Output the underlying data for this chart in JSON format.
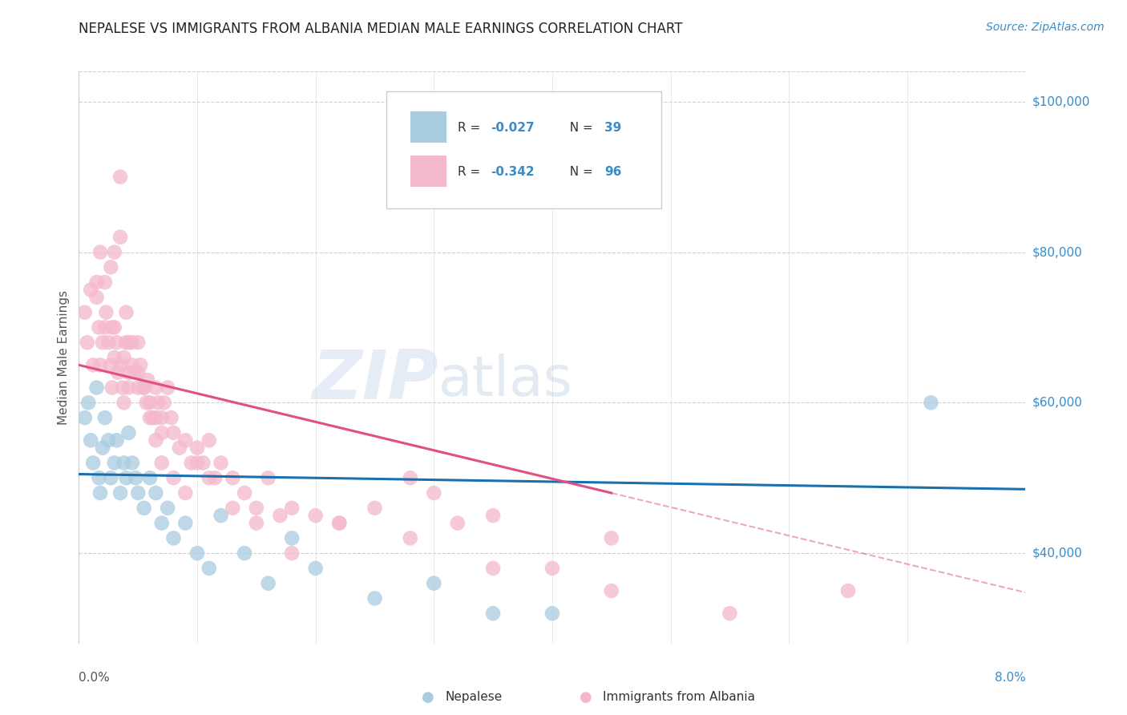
{
  "title": "NEPALESE VS IMMIGRANTS FROM ALBANIA MEDIAN MALE EARNINGS CORRELATION CHART",
  "source": "Source: ZipAtlas.com",
  "ylabel": "Median Male Earnings",
  "yticks": [
    40000,
    60000,
    80000,
    100000
  ],
  "ytick_labels": [
    "$40,000",
    "$60,000",
    "$80,000",
    "$100,000"
  ],
  "xlim": [
    0.0,
    8.0
  ],
  "ylim": [
    28000,
    104000
  ],
  "color_blue": "#a8cce0",
  "color_pink": "#f4b8cb",
  "color_blue_line": "#1a6faf",
  "color_pink_line": "#e05080",
  "color_blue_text": "#3a8cc8",
  "nepalese_x": [
    0.05,
    0.08,
    0.1,
    0.12,
    0.15,
    0.17,
    0.18,
    0.2,
    0.22,
    0.25,
    0.27,
    0.3,
    0.32,
    0.35,
    0.38,
    0.4,
    0.42,
    0.45,
    0.48,
    0.5,
    0.55,
    0.6,
    0.65,
    0.7,
    0.75,
    0.8,
    0.9,
    1.0,
    1.1,
    1.2,
    1.4,
    1.6,
    1.8,
    2.0,
    2.5,
    3.0,
    3.5,
    4.0,
    7.2
  ],
  "nepalese_y": [
    58000,
    60000,
    55000,
    52000,
    62000,
    50000,
    48000,
    54000,
    58000,
    55000,
    50000,
    52000,
    55000,
    48000,
    52000,
    50000,
    56000,
    52000,
    50000,
    48000,
    46000,
    50000,
    48000,
    44000,
    46000,
    42000,
    44000,
    40000,
    38000,
    45000,
    40000,
    36000,
    42000,
    38000,
    34000,
    36000,
    32000,
    32000,
    60000
  ],
  "albania_x": [
    0.05,
    0.07,
    0.1,
    0.12,
    0.15,
    0.15,
    0.17,
    0.18,
    0.2,
    0.22,
    0.23,
    0.25,
    0.27,
    0.28,
    0.3,
    0.3,
    0.32,
    0.33,
    0.35,
    0.37,
    0.38,
    0.38,
    0.4,
    0.42,
    0.42,
    0.45,
    0.45,
    0.47,
    0.5,
    0.5,
    0.52,
    0.55,
    0.57,
    0.58,
    0.6,
    0.62,
    0.65,
    0.65,
    0.67,
    0.7,
    0.7,
    0.72,
    0.75,
    0.78,
    0.8,
    0.85,
    0.9,
    0.95,
    1.0,
    1.05,
    1.1,
    1.15,
    1.2,
    1.3,
    1.4,
    1.5,
    1.6,
    1.7,
    1.8,
    2.0,
    2.2,
    2.5,
    2.8,
    3.0,
    3.2,
    3.5,
    4.0,
    4.5,
    0.27,
    0.3,
    0.35,
    0.35,
    0.4,
    0.42,
    0.5,
    0.55,
    0.6,
    0.65,
    0.7,
    0.8,
    0.9,
    1.0,
    1.1,
    1.3,
    1.5,
    1.8,
    2.2,
    2.8,
    3.5,
    4.5,
    5.5,
    6.5,
    0.18,
    0.22,
    0.28
  ],
  "albania_y": [
    72000,
    68000,
    75000,
    65000,
    76000,
    74000,
    70000,
    65000,
    68000,
    70000,
    72000,
    68000,
    65000,
    62000,
    66000,
    70000,
    68000,
    64000,
    65000,
    62000,
    66000,
    60000,
    68000,
    64000,
    62000,
    68000,
    65000,
    64000,
    68000,
    62000,
    65000,
    62000,
    60000,
    63000,
    60000,
    58000,
    62000,
    58000,
    60000,
    58000,
    56000,
    60000,
    62000,
    58000,
    56000,
    54000,
    55000,
    52000,
    54000,
    52000,
    55000,
    50000,
    52000,
    50000,
    48000,
    46000,
    50000,
    45000,
    46000,
    45000,
    44000,
    46000,
    50000,
    48000,
    44000,
    45000,
    38000,
    42000,
    78000,
    80000,
    82000,
    90000,
    72000,
    68000,
    64000,
    62000,
    58000,
    55000,
    52000,
    50000,
    48000,
    52000,
    50000,
    46000,
    44000,
    40000,
    44000,
    42000,
    38000,
    35000,
    32000,
    35000,
    80000,
    76000,
    70000
  ]
}
